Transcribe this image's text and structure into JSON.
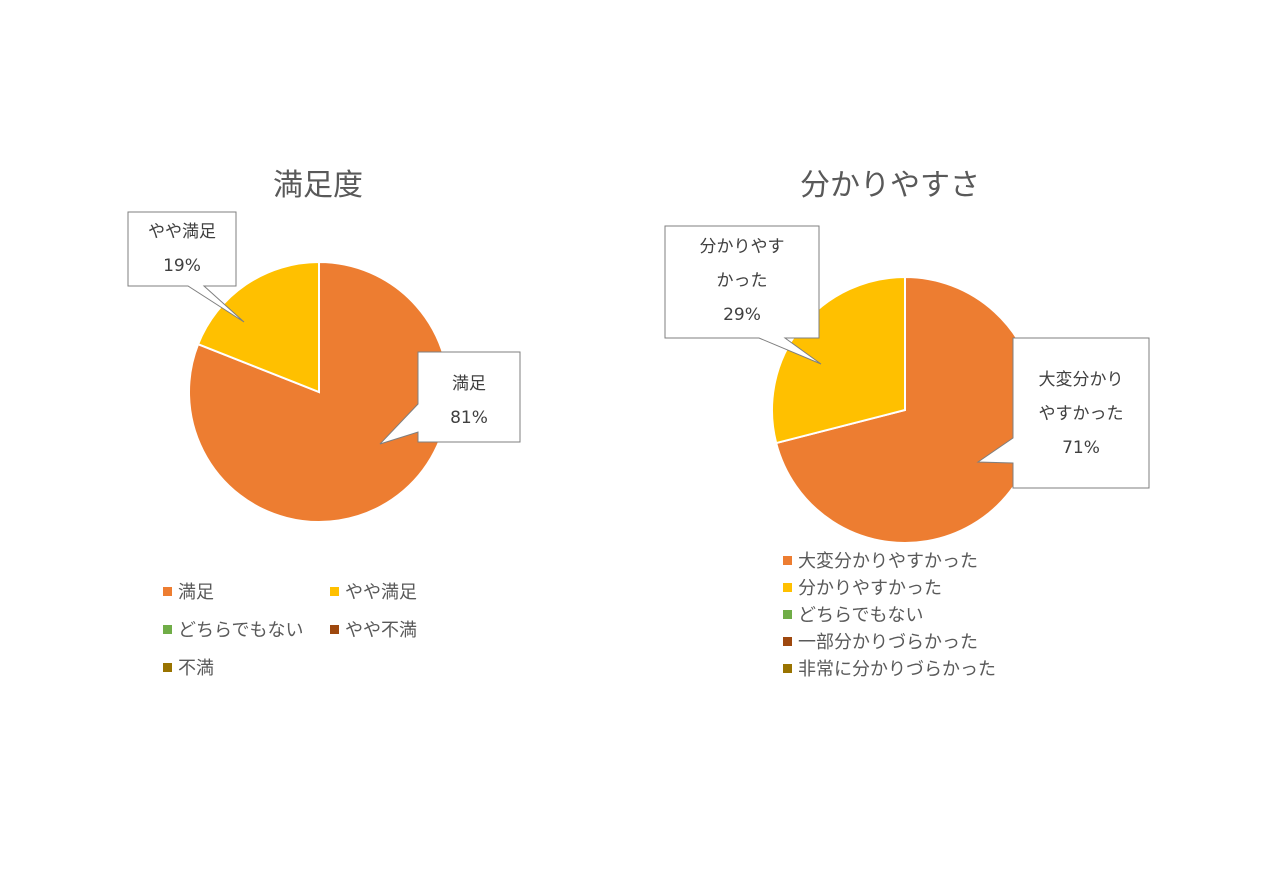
{
  "chart_data": [
    {
      "type": "pie",
      "title": "満足度",
      "categories": [
        "満足",
        "やや満足",
        "どちらでもない",
        "やや不満",
        "不満"
      ],
      "values": [
        81,
        19,
        0,
        0,
        0
      ],
      "colors": [
        "#ED7D31",
        "#FFC000",
        "#70AD47",
        "#9E480E",
        "#997300"
      ],
      "data_labels": [
        {
          "name": "満足",
          "value": "81%"
        },
        {
          "name": "やや満足",
          "value": "19%"
        }
      ],
      "legend_position": "bottom"
    },
    {
      "type": "pie",
      "title": "分かりやすさ",
      "categories": [
        "大変分かりやすかった",
        "分かりやすかった",
        "どちらでもない",
        "一部分かりづらかった",
        "非常に分かりづらかった"
      ],
      "values": [
        71,
        29,
        0,
        0,
        0
      ],
      "colors": [
        "#ED7D31",
        "#FFC000",
        "#70AD47",
        "#9E480E",
        "#997300"
      ],
      "data_labels": [
        {
          "lines": [
            "大変分かり",
            "やすかった"
          ],
          "value": "71%"
        },
        {
          "lines": [
            "分かりやす",
            "かった"
          ],
          "value": "29%"
        }
      ],
      "legend_position": "bottom"
    }
  ]
}
